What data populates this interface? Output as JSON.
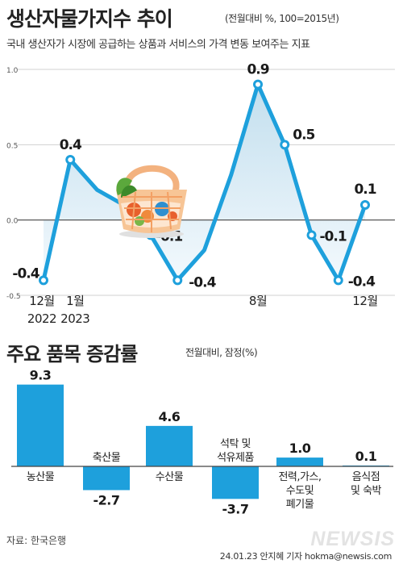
{
  "title": "생산자물가지수 추이",
  "title_unit": "(전월대비 %, 100=2015년)",
  "subtitle": "국내 생산자가 시장에 공급하는 상품과 서비스의 가격 변동 보여주는 지표",
  "chart_data": [
    {
      "type": "line",
      "x": [
        "2022-12",
        "2023-01",
        "2023-02",
        "2023-03",
        "2023-04",
        "2023-05",
        "2023-06",
        "2023-07",
        "2023-08",
        "2023-09",
        "2023-10",
        "2023-11",
        "2023-12"
      ],
      "values": [
        -0.4,
        0.4,
        0.2,
        0.1,
        -0.1,
        -0.4,
        -0.2,
        0.3,
        0.9,
        0.5,
        -0.1,
        -0.4,
        0.1
      ],
      "data_labels": [
        {
          "index": 0,
          "text": "-0.4"
        },
        {
          "index": 1,
          "text": "0.4"
        },
        {
          "index": 4,
          "text": "-0.1"
        },
        {
          "index": 5,
          "text": "-0.4"
        },
        {
          "index": 8,
          "text": "0.9"
        },
        {
          "index": 9,
          "text": "0.5"
        },
        {
          "index": 10,
          "text": "-0.1"
        },
        {
          "index": 11,
          "text": "-0.4"
        },
        {
          "index": 12,
          "text": "0.1"
        }
      ],
      "ylim": [
        -0.5,
        1.0
      ],
      "yticks": [
        {
          "value": 1.0,
          "label": "1.0"
        },
        {
          "value": 0.5,
          "label": "0.5"
        },
        {
          "value": 0.0,
          "label": "0.0"
        },
        {
          "value": -0.5,
          "label": "-0.5"
        }
      ],
      "x_tick_labels": [
        {
          "index": 0,
          "lines": [
            "12월",
            "2022"
          ]
        },
        {
          "index": 1,
          "lines": [
            "1월",
            "2023"
          ]
        },
        {
          "index": 8,
          "lines": [
            "8월"
          ]
        },
        {
          "index": 12,
          "lines": [
            "12월"
          ]
        }
      ],
      "grid": "horizontal",
      "colors": {
        "line": "#1ea0dc",
        "fill_top": "#c3dfee",
        "fill_bottom": "#f3f9fd"
      },
      "icon": "shopping-basket-icon"
    },
    {
      "type": "bar",
      "title": "주요 품목 증감률",
      "unit": "전월대비, 잠정(%)",
      "categories": [
        {
          "lines": [
            "농산물"
          ]
        },
        {
          "lines": [
            "축산물"
          ]
        },
        {
          "lines": [
            "수산물"
          ]
        },
        {
          "lines": [
            "석탁 및",
            "석유제품"
          ]
        },
        {
          "lines": [
            "전력,가스,",
            "수도및",
            "폐기물"
          ]
        },
        {
          "lines": [
            "음식점",
            "및 숙박"
          ]
        }
      ],
      "values": [
        9.3,
        -2.7,
        4.6,
        -3.7,
        1.0,
        0.1
      ],
      "value_labels": [
        "9.3",
        "-2.7",
        "4.6",
        "-3.7",
        "1.0",
        "0.1"
      ],
      "colors": {
        "bar": "#1ea0dc"
      }
    }
  ],
  "source": "자료: 한국은행",
  "credit": "24.01.23 안지혜 기자 hokma@newsis.com",
  "logo": "NEWSIS"
}
